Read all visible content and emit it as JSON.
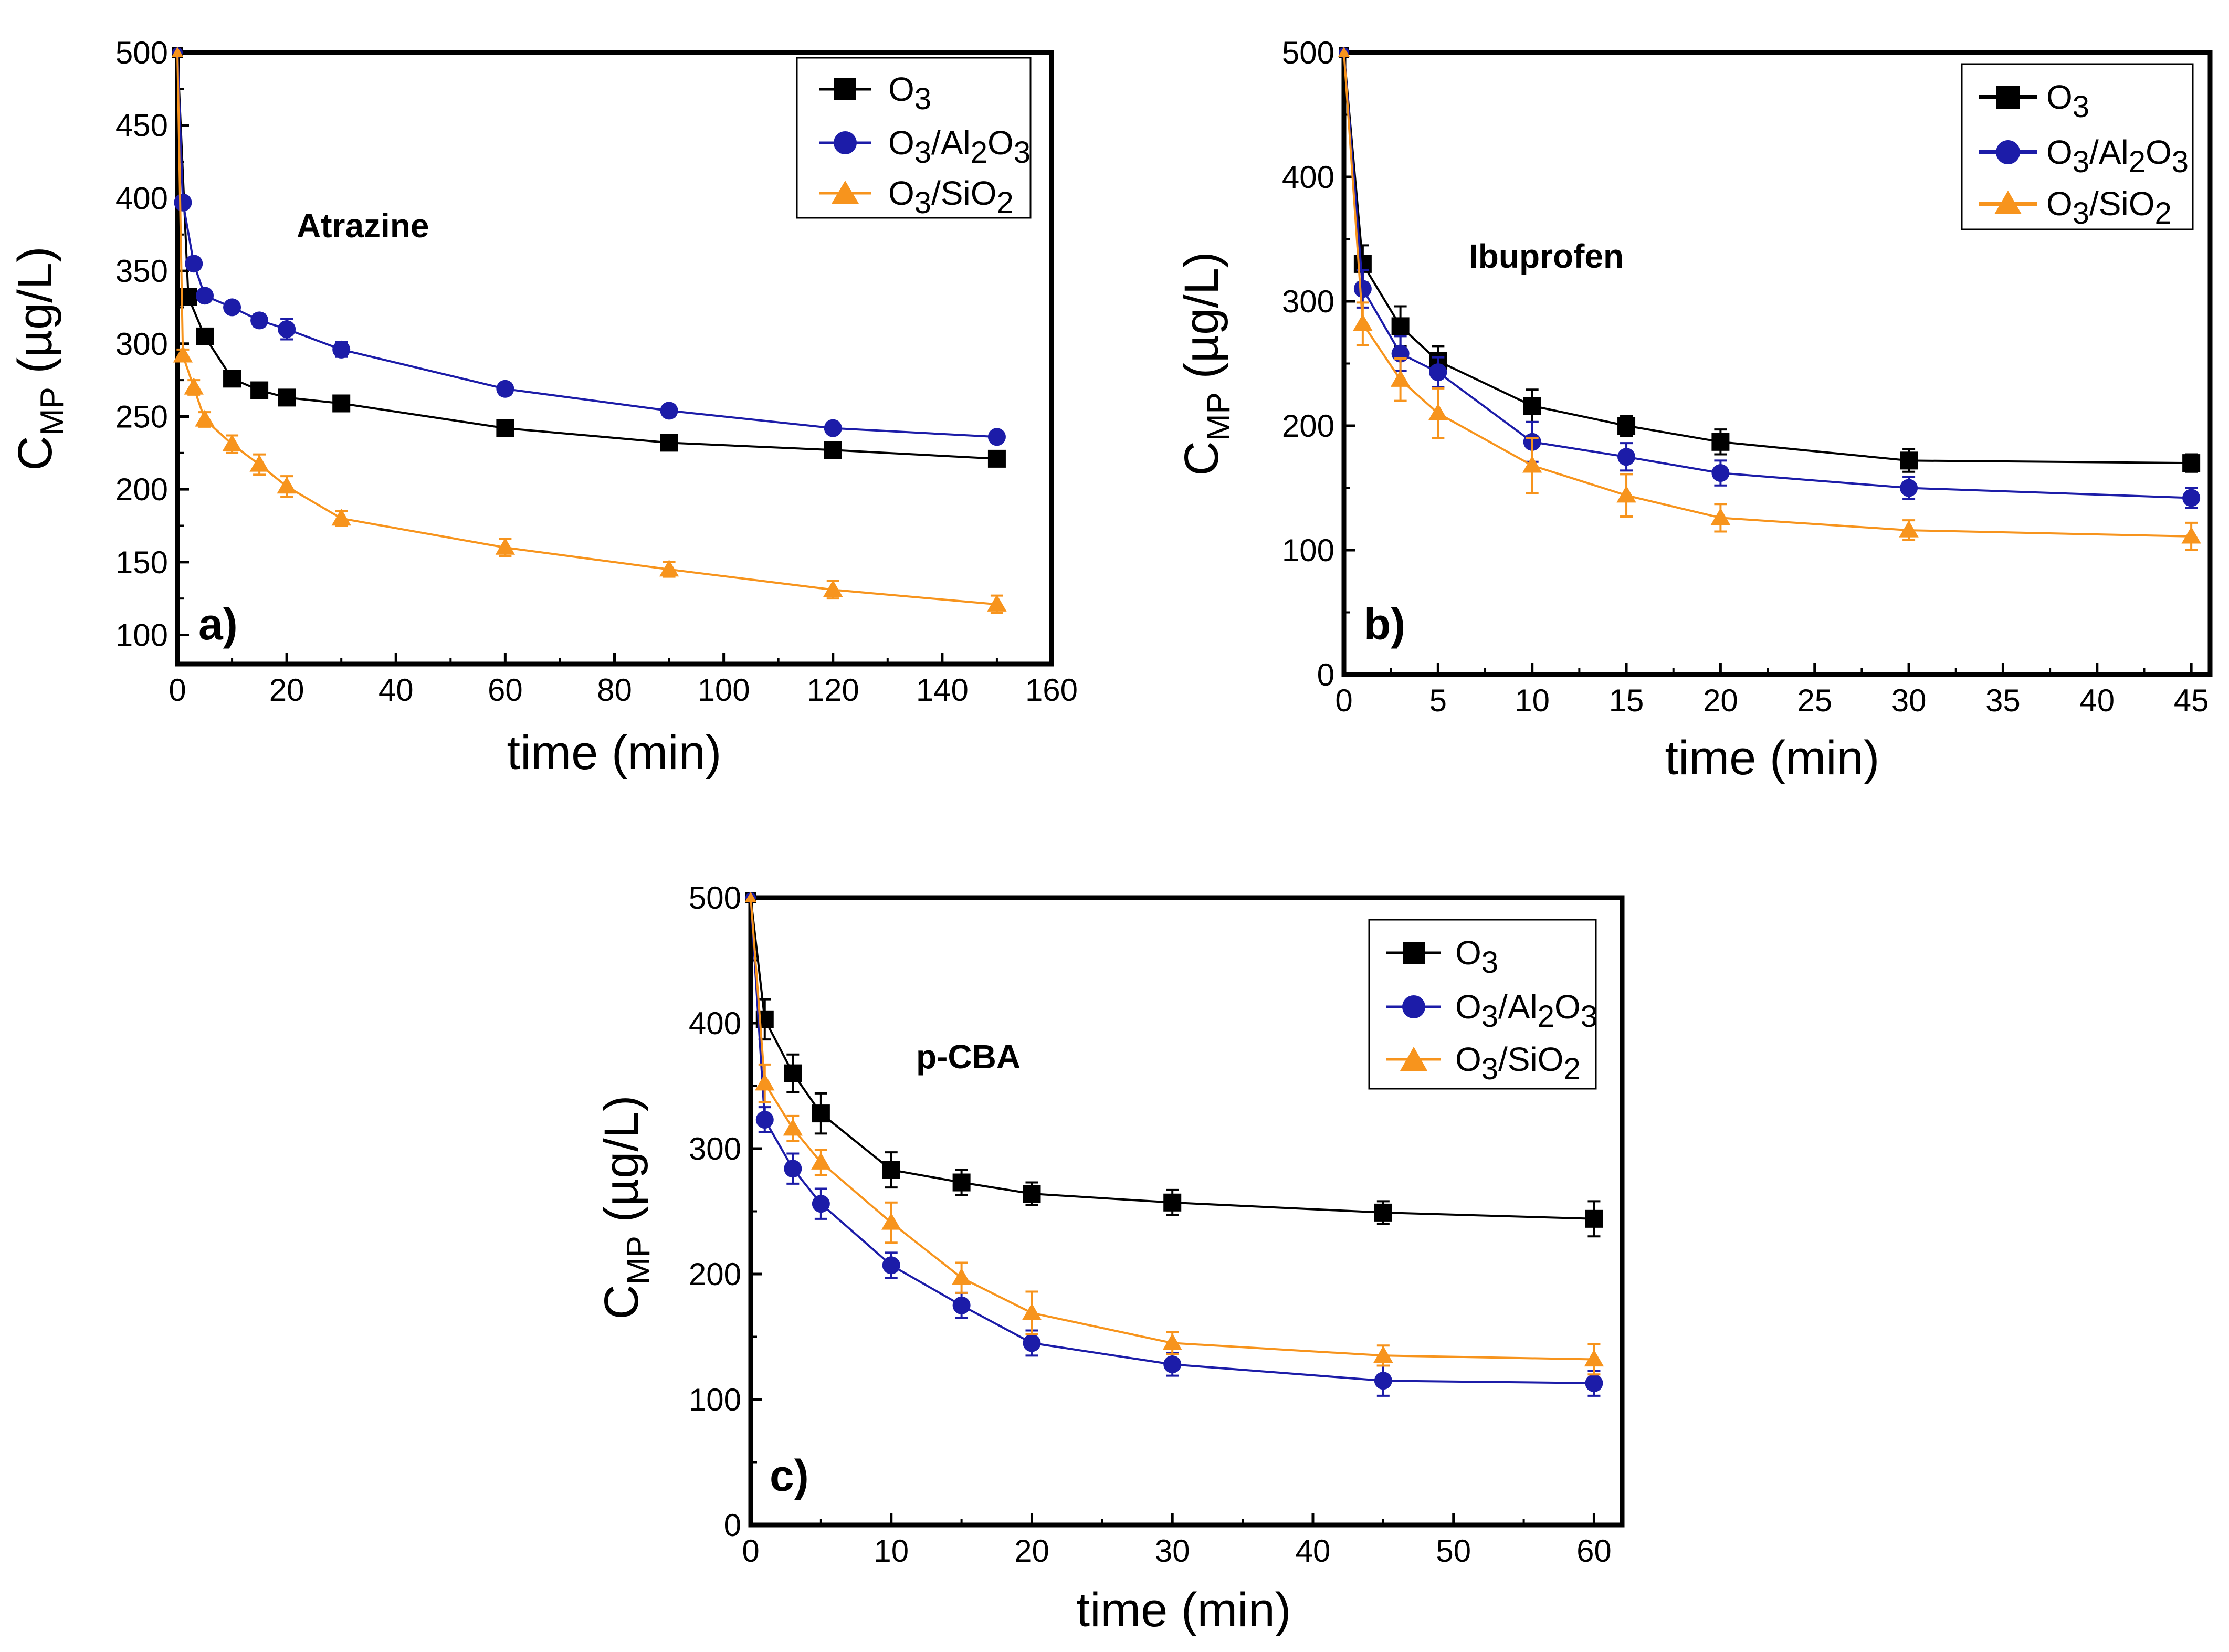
{
  "figure_title": "",
  "legend_labels": {
    "O3": [
      "O",
      "3",
      "",
      "",
      ""
    ],
    "O3/Al2O3": [
      "O",
      "3",
      "/Al",
      "2",
      "O",
      "3"
    ],
    "O3/SiO2": [
      "O",
      "3",
      "/SiO",
      "2"
    ]
  },
  "chart_data": [
    {
      "type": "line",
      "panel_label": "a)",
      "title": "Atrazine",
      "xlabel": "time (min)",
      "ylabel": "C",
      "ylabel_sub": "MP",
      "ylabel_unit": " (µg/L)",
      "xlim": [
        0,
        160
      ],
      "ylim": [
        80,
        500
      ],
      "xticks": [
        "0",
        "20",
        "40",
        "60",
        "80",
        "100",
        "120",
        "140",
        "160"
      ],
      "yticks": [
        "100",
        "150",
        "200",
        "250",
        "300",
        "350",
        "400",
        "450",
        "500"
      ],
      "legend_position": "top-right",
      "series": [
        {
          "name": "O3",
          "color": "#000000",
          "marker": "square",
          "x": [
            0,
            2,
            5,
            10,
            15,
            20,
            30,
            60,
            90,
            120,
            150
          ],
          "y": [
            500,
            332,
            305,
            276,
            268,
            263,
            259,
            242,
            232,
            227,
            221
          ],
          "err": [
            0,
            3,
            3,
            3,
            3,
            3,
            3,
            4,
            4,
            4,
            4
          ]
        },
        {
          "name": "O3/Al2O3",
          "color": "#1c1ca8",
          "marker": "circle",
          "x": [
            0,
            1,
            3,
            5,
            10,
            15,
            20,
            30,
            60,
            90,
            120,
            150
          ],
          "y": [
            500,
            397,
            355,
            333,
            325,
            316,
            310,
            296,
            269,
            254,
            242,
            236
          ],
          "err": [
            0,
            3,
            3,
            3,
            4,
            4,
            7,
            5,
            4,
            4,
            4,
            4
          ]
        },
        {
          "name": "O3/SiO2",
          "color": "#f7941d",
          "marker": "triangle",
          "x": [
            0,
            1,
            3,
            5,
            10,
            15,
            20,
            30,
            60,
            90,
            120,
            150
          ],
          "y": [
            500,
            292,
            270,
            248,
            231,
            217,
            202,
            180,
            160,
            145,
            131,
            121
          ],
          "err": [
            0,
            4,
            5,
            5,
            6,
            7,
            7,
            5,
            6,
            5,
            6,
            6
          ]
        }
      ]
    },
    {
      "type": "line",
      "panel_label": "b)",
      "title": "Ibuprofen",
      "xlabel": "time (min)",
      "ylabel": "C",
      "ylabel_sub": "MP",
      "ylabel_unit": " (µg/L)",
      "xlim": [
        0,
        46
      ],
      "ylim": [
        0,
        500
      ],
      "xticks": [
        "0",
        "5",
        "10",
        "15",
        "20",
        "25",
        "30",
        "35",
        "40",
        "45"
      ],
      "yticks": [
        "0",
        "100",
        "200",
        "300",
        "400",
        "500"
      ],
      "legend_position": "top-right",
      "series": [
        {
          "name": "O3",
          "color": "#000000",
          "marker": "square",
          "x": [
            0,
            1,
            3,
            5,
            10,
            15,
            20,
            30,
            45
          ],
          "y": [
            500,
            330,
            280,
            252,
            216,
            200,
            187,
            172,
            170
          ],
          "err": [
            0,
            15,
            16,
            12,
            13,
            8,
            10,
            9,
            7
          ]
        },
        {
          "name": "O3/Al2O3",
          "color": "#1c1ca8",
          "marker": "circle",
          "x": [
            0,
            1,
            3,
            5,
            10,
            15,
            20,
            30,
            45
          ],
          "y": [
            500,
            310,
            258,
            243,
            187,
            175,
            162,
            150,
            142
          ],
          "err": [
            0,
            15,
            14,
            12,
            16,
            11,
            10,
            9,
            8
          ]
        },
        {
          "name": "O3/SiO2",
          "color": "#f7941d",
          "marker": "triangle",
          "x": [
            0,
            1,
            3,
            5,
            10,
            15,
            20,
            30,
            45
          ],
          "y": [
            500,
            282,
            237,
            210,
            168,
            144,
            126,
            116,
            111
          ],
          "err": [
            0,
            17,
            17,
            20,
            22,
            17,
            11,
            8,
            11
          ]
        }
      ]
    },
    {
      "type": "line",
      "panel_label": "c)",
      "title": "p-CBA",
      "xlabel": "time (min)",
      "ylabel": "C",
      "ylabel_sub": "MP",
      "ylabel_unit": " (µg/L)",
      "xlim": [
        0,
        62
      ],
      "ylim": [
        0,
        500
      ],
      "xticks": [
        "0",
        "10",
        "20",
        "30",
        "40",
        "50",
        "60"
      ],
      "yticks": [
        "0",
        "100",
        "200",
        "300",
        "400",
        "500"
      ],
      "legend_position": "top-right",
      "series": [
        {
          "name": "O3",
          "color": "#000000",
          "marker": "square",
          "x": [
            0,
            1,
            3,
            5,
            10,
            15,
            20,
            30,
            45,
            60
          ],
          "y": [
            500,
            403,
            360,
            328,
            283,
            273,
            264,
            257,
            249,
            244
          ],
          "err": [
            0,
            16,
            15,
            16,
            14,
            10,
            9,
            10,
            9,
            14
          ]
        },
        {
          "name": "O3/Al2O3",
          "color": "#1c1ca8",
          "marker": "circle",
          "x": [
            0,
            1,
            3,
            5,
            10,
            15,
            20,
            30,
            45,
            60
          ],
          "y": [
            500,
            323,
            284,
            256,
            207,
            175,
            145,
            128,
            115,
            113
          ],
          "err": [
            0,
            10,
            12,
            12,
            10,
            10,
            10,
            9,
            12,
            10
          ]
        },
        {
          "name": "O3/SiO2",
          "color": "#f7941d",
          "marker": "triangle",
          "x": [
            0,
            1,
            3,
            5,
            10,
            15,
            20,
            30,
            45,
            60
          ],
          "y": [
            500,
            352,
            316,
            289,
            241,
            197,
            169,
            145,
            135,
            132
          ],
          "err": [
            0,
            15,
            10,
            10,
            16,
            12,
            17,
            9,
            8,
            12
          ]
        }
      ]
    }
  ]
}
